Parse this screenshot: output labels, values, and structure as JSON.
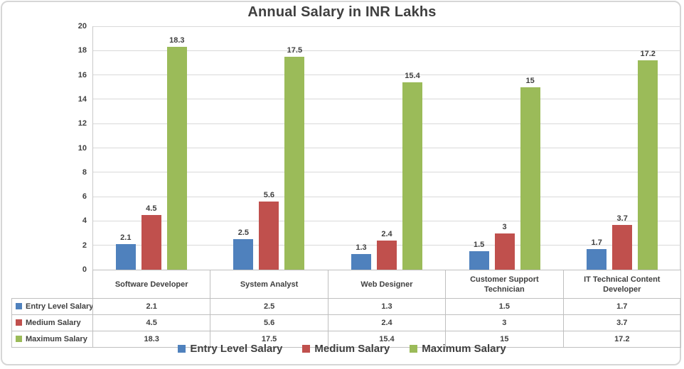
{
  "chart": {
    "title": "Annual Salary in INR Lakhs"
  },
  "chart_data": {
    "type": "bar",
    "title": "Annual Salary in INR Lakhs",
    "categories": [
      "Software Developer",
      "System Analyst",
      "Web Designer",
      "Customer Support Technician",
      "IT Technical Content Developer"
    ],
    "series": [
      {
        "name": "Entry Level Salary",
        "color": "#4F81BD",
        "values": [
          2.1,
          2.5,
          1.3,
          1.5,
          1.7
        ]
      },
      {
        "name": "Medium Salary",
        "color": "#C0504D",
        "values": [
          4.5,
          5.6,
          2.4,
          3,
          3.7
        ]
      },
      {
        "name": "Maximum Salary",
        "color": "#9BBB59",
        "values": [
          18.3,
          17.5,
          15.4,
          15,
          17.2
        ]
      }
    ],
    "xlabel": "",
    "ylabel": "",
    "ylim": [
      0,
      20
    ],
    "ytick_step": 2,
    "grid": true,
    "data_labels": true,
    "legend_position": "bottom",
    "show_data_table": true
  },
  "colors": {
    "text": "#404040",
    "gridline": "#D9D9D9",
    "axis_line": "#BFBFBF",
    "table_border": "#BFBFBF",
    "frame_border": "#D6D6D6",
    "background": "#FFFFFF"
  }
}
